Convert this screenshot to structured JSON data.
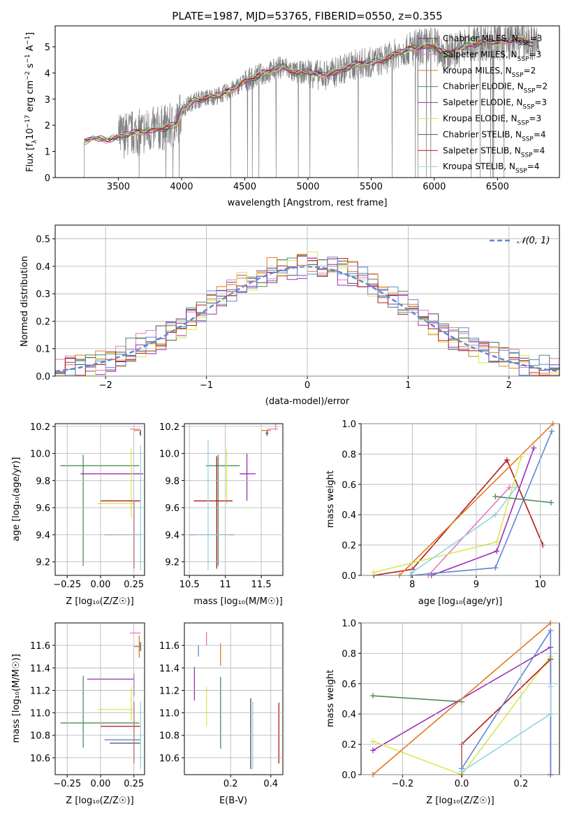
{
  "figure": {
    "title": "PLATE=1987, MJD=53765, FIBERID=0550, z=0.355"
  },
  "colors": {
    "spectrum": "#7f7f7f",
    "grid": "#b0b0b0",
    "series": [
      "#4d4d4d",
      "#e377c2",
      "#e07a1f",
      "#4f8a5a",
      "#9a2fb5",
      "#d9e84f",
      "#555555",
      "#b01818",
      "#8fd6e6",
      "#5f86d6"
    ],
    "gaussian": "#5f86d6"
  },
  "labels": {
    "spec_x": "wavelength [Angstrom, rest frame]",
    "spec_y_main": "Flux [f",
    "spec_y_sub": "λ",
    "spec_y_mid": "10",
    "spec_y_sup1": "−17",
    "spec_y_mid2": " erg cm",
    "spec_y_sup2": "−2",
    "spec_y_mid3": " s",
    "spec_y_sup3": "−1",
    "spec_y_mid4": " A",
    "spec_y_sup4": "−1",
    "spec_y_end": "]",
    "hist_x": "(data-model)/error",
    "hist_y": "Normed distribution",
    "hist_legend": "𝒩(0, 1)",
    "age_y": "age  [log₁₀(age/yr)]",
    "z_x": "Z [log₁₀(Z/Z☉)]",
    "mass_x": "mass [log₁₀(M/M☉)]",
    "mass_y": "mass [log₁₀(M/M☉)]",
    "ebv_x": "E(B-V)",
    "weight_y": "mass weight",
    "age_x": "age  [log₁₀(age/yr)]"
  },
  "chart_data": [
    {
      "type": "line",
      "title": "PLATE=1987, MJD=53765, FIBERID=0550, z=0.355",
      "xlabel": "wavelength [Angstrom, rest frame]",
      "ylabel": "Flux [f_λ 10^-17 erg cm^-2 s^-1 A^-1]",
      "xlim": [
        3000,
        6990
      ],
      "ylim": [
        0,
        5.8
      ],
      "xticks": [
        3500,
        4000,
        4500,
        5000,
        5500,
        6000,
        6500
      ],
      "yticks": [
        0,
        1,
        2,
        3,
        4,
        5
      ],
      "grid": false,
      "legend_position": "top-right",
      "observed_range": [
        3230,
        6830
      ],
      "continuum_knots": {
        "x": [
          3230,
          3300,
          3400,
          3500,
          3600,
          3700,
          3800,
          3900,
          3960,
          4000,
          4100,
          4200,
          4300,
          4400,
          4500,
          4600,
          4700,
          4800,
          4900,
          5000,
          5100,
          5200,
          5300,
          5400,
          5500,
          5600,
          5700,
          5800,
          5900,
          6000,
          6100,
          6200,
          6300,
          6400,
          6500,
          6600,
          6700,
          6780
        ],
        "y": [
          1.38,
          1.5,
          1.45,
          1.55,
          1.7,
          1.75,
          1.85,
          1.95,
          2.0,
          2.6,
          2.95,
          3.05,
          3.15,
          3.35,
          3.7,
          3.9,
          4.05,
          4.25,
          4.0,
          4.05,
          3.9,
          4.0,
          4.2,
          4.35,
          4.4,
          4.5,
          4.75,
          4.9,
          5.0,
          5.05,
          4.7,
          4.95,
          5.1,
          5.2,
          5.15,
          5.25,
          5.3,
          5.1
        ]
      },
      "series": [
        {
          "name": "Chabrier MILES, N_SSP=3",
          "label_main": "Chabrier MILES, N",
          "label_sub": "SSP",
          "label_end": "=3"
        },
        {
          "name": "Salpeter MILES, N_SSP=3",
          "label_main": "Salpeter MILES, N",
          "label_sub": "SSP",
          "label_end": "=3"
        },
        {
          "name": "Kroupa MILES, N_SSP=2",
          "label_main": "Kroupa MILES, N",
          "label_sub": "SSP",
          "label_end": "=2"
        },
        {
          "name": "Chabrier ELODIE, N_SSP=2",
          "label_main": "Chabrier ELODIE, N",
          "label_sub": "SSP",
          "label_end": "=2"
        },
        {
          "name": "Salpeter ELODIE, N_SSP=3",
          "label_main": "Salpeter ELODIE, N",
          "label_sub": "SSP",
          "label_end": "=3"
        },
        {
          "name": "Kroupa ELODIE, N_SSP=3",
          "label_main": "Kroupa ELODIE, N",
          "label_sub": "SSP",
          "label_end": "=3"
        },
        {
          "name": "Chabrier STELIB, N_SSP=4",
          "label_main": "Chabrier STELIB, N",
          "label_sub": "SSP",
          "label_end": "=4"
        },
        {
          "name": "Salpeter STELIB, N_SSP=4",
          "label_main": "Salpeter STELIB, N",
          "label_sub": "SSP",
          "label_end": "=4"
        },
        {
          "name": "Kroupa STELIB, N_SSP=4",
          "label_main": "Kroupa STELIB, N",
          "label_sub": "SSP",
          "label_end": "=4"
        }
      ]
    },
    {
      "type": "line",
      "xlabel": "(data-model)/error",
      "ylabel": "Normed distribution",
      "xlim": [
        -2.5,
        2.5
      ],
      "ylim": [
        0,
        0.55
      ],
      "xticks": [
        -2,
        -1,
        0,
        1,
        2
      ],
      "yticks": [
        0.0,
        0.1,
        0.2,
        0.3,
        0.4,
        0.5
      ],
      "grid": true,
      "legend_position": "top-right",
      "bin_width": 0.1,
      "gaussian": {
        "name": "𝒩(0, 1)",
        "mean": 0,
        "sigma": 1
      },
      "series_hist": [
        {
          "color_index": 0,
          "amp": 0.4,
          "sigma": 1.0
        },
        {
          "color_index": 1,
          "amp": 0.41,
          "sigma": 1.02
        },
        {
          "color_index": 2,
          "amp": 0.42,
          "sigma": 1.0
        },
        {
          "color_index": 3,
          "amp": 0.4,
          "sigma": 1.05
        },
        {
          "color_index": 4,
          "amp": 0.4,
          "sigma": 0.98
        },
        {
          "color_index": 5,
          "amp": 0.42,
          "sigma": 0.97
        },
        {
          "color_index": 7,
          "amp": 0.41,
          "sigma": 1.0
        },
        {
          "color_index": 9,
          "amp": 0.41,
          "sigma": 1.03
        }
      ]
    },
    {
      "type": "scatter",
      "panel": "age_vs_Z",
      "xlabel": "Z [log10(Z/Zsun)]",
      "ylabel": "age [log10(age/yr)]",
      "xlim": [
        -0.34,
        0.33
      ],
      "ylim": [
        9.1,
        10.22
      ],
      "xticks": [
        -0.25,
        0.0,
        0.25
      ],
      "xtick_labels": [
        "−0.25",
        "0.00",
        "0.25"
      ],
      "yticks": [
        9.2,
        9.4,
        9.6,
        9.8,
        10.0,
        10.2
      ],
      "grid": true,
      "points": [
        {
          "c": 3,
          "x": -0.13,
          "xerr": [
            0.17,
            0.42
          ],
          "y": 9.91,
          "yerr": [
            0.74,
            0.08
          ]
        },
        {
          "c": 4,
          "x": 0.25,
          "xerr": [
            0.4,
            0.07
          ],
          "y": 9.85,
          "yerr": [
            0.0,
            0.0
          ]
        },
        {
          "c": 5,
          "x": 0.23,
          "xerr": [
            0.25,
            0.02
          ],
          "y": 9.63,
          "yerr": [
            0.1,
            0.41
          ]
        },
        {
          "c": 7,
          "x": 0.25,
          "xerr": [
            0.25,
            0.05
          ],
          "y": 9.65,
          "yerr": [
            0.5,
            0.0
          ]
        },
        {
          "c": 8,
          "x": 0.3,
          "xerr": [
            0.0,
            0.0
          ],
          "y": 9.64,
          "yerr": [
            0.5,
            0.42
          ]
        },
        {
          "c": 9,
          "x": 0.25,
          "xerr": [
            0.22,
            0.05
          ],
          "y": 9.4,
          "yerr": [
            0.0,
            0.0
          ]
        },
        {
          "c": 8,
          "x": 0.28,
          "xerr": [
            0.18,
            0.02
          ],
          "y": 9.4,
          "yerr": [
            0.0,
            0.0
          ]
        },
        {
          "c": 1,
          "x": 0.27,
          "xerr": [
            0.05,
            0.03
          ],
          "y": 10.18,
          "yerr": [
            0.0,
            0.0
          ]
        },
        {
          "c": 2,
          "x": 0.29,
          "xerr": [
            0.04,
            0.01
          ],
          "y": 10.17,
          "yerr": [
            0.0,
            0.0
          ]
        },
        {
          "c": 0,
          "x": 0.3,
          "xerr": [
            0.01,
            0.0
          ],
          "y": 10.15,
          "yerr": [
            0.02,
            0.02
          ]
        }
      ]
    },
    {
      "type": "scatter",
      "panel": "age_vs_mass",
      "xlabel": "mass [log10(M/Msun)]",
      "xlim": [
        10.43,
        11.8
      ],
      "ylim": [
        9.1,
        10.22
      ],
      "xticks": [
        10.5,
        11.0,
        11.5
      ],
      "yticks": [
        9.2,
        9.4,
        9.6,
        9.8,
        10.0,
        10.2
      ],
      "grid": true,
      "points": [
        {
          "c": 3,
          "x": 10.9,
          "xerr": [
            0.17,
            0.3
          ],
          "y": 9.91,
          "yerr": [
            0.74,
            0.08
          ]
        },
        {
          "c": 4,
          "x": 11.3,
          "xerr": [
            0.1,
            0.12
          ],
          "y": 9.85,
          "yerr": [
            0.2,
            0.15
          ]
        },
        {
          "c": 5,
          "x": 11.02,
          "xerr": [
            0.0,
            0.0
          ],
          "y": 9.63,
          "yerr": [
            0.0,
            0.4
          ]
        },
        {
          "c": 7,
          "x": 10.88,
          "xerr": [
            0.32,
            0.22
          ],
          "y": 9.65,
          "yerr": [
            0.5,
            0.33
          ]
        },
        {
          "c": 8,
          "x": 10.76,
          "xerr": [
            0.0,
            0.0
          ],
          "y": 9.64,
          "yerr": [
            0.5,
            0.46
          ]
        },
        {
          "c": 9,
          "x": 10.75,
          "xerr": [
            0.25,
            0.38
          ],
          "y": 9.4,
          "yerr": [
            0.0,
            0.0
          ]
        },
        {
          "c": 8,
          "x": 10.8,
          "xerr": [
            0.22,
            0.26
          ],
          "y": 9.4,
          "yerr": [
            0.0,
            0.0
          ]
        },
        {
          "c": 1,
          "x": 11.7,
          "xerr": [
            0.12,
            0.03
          ],
          "y": 10.18,
          "yerr": [
            0.0,
            0.1
          ]
        },
        {
          "c": 2,
          "x": 11.6,
          "xerr": [
            0.1,
            0.03
          ],
          "y": 10.17,
          "yerr": [
            0.0,
            0.0
          ]
        },
        {
          "c": 0,
          "x": 11.58,
          "xerr": [
            0.02,
            0.02
          ],
          "y": 10.15,
          "yerr": [
            0.02,
            0.02
          ]
        }
      ]
    },
    {
      "type": "line",
      "panel": "weight_vs_age",
      "xlabel": "age [log10(age/yr)]",
      "ylabel": "mass weight",
      "xlim": [
        7.2,
        10.3
      ],
      "ylim": [
        0,
        1
      ],
      "xticks": [
        8,
        9,
        10
      ],
      "yticks": [
        0.0,
        0.2,
        0.4,
        0.6,
        0.8,
        1.0
      ],
      "grid": true,
      "series": [
        {
          "c": 7,
          "x": [
            7.4,
            8.0,
            9.48,
            10.04
          ],
          "y": [
            0.0,
            0.04,
            0.76,
            0.2
          ]
        },
        {
          "c": 2,
          "x": [
            7.8,
            10.2
          ],
          "y": [
            0.0,
            1.0
          ]
        },
        {
          "c": 1,
          "x": [
            8.25,
            9.52
          ],
          "y": [
            0.0,
            0.58
          ]
        },
        {
          "c": 4,
          "x": [
            8.3,
            9.32,
            9.9
          ],
          "y": [
            0.0,
            0.16,
            0.84
          ]
        },
        {
          "c": 5,
          "x": [
            7.4,
            9.32,
            9.7
          ],
          "y": [
            0.02,
            0.22,
            0.78
          ]
        },
        {
          "c": 9,
          "x": [
            7.98,
            9.3,
            10.18
          ],
          "y": [
            0.0,
            0.05,
            0.95
          ]
        },
        {
          "c": 3,
          "x": [
            9.3,
            10.17
          ],
          "y": [
            0.52,
            0.48
          ]
        },
        {
          "c": 8,
          "x": [
            8.0,
            9.3,
            9.62
          ],
          "y": [
            0.02,
            0.4,
            0.58
          ]
        }
      ]
    },
    {
      "type": "scatter",
      "panel": "mass_vs_Z",
      "xlabel": "Z [log10(Z/Zsun)]",
      "ylabel": "mass [log10(M/Msun)]",
      "xlim": [
        -0.34,
        0.33
      ],
      "ylim": [
        10.45,
        11.8
      ],
      "xticks": [
        -0.25,
        0.0,
        0.25
      ],
      "xtick_labels": [
        "−0.25",
        "0.00",
        "0.25"
      ],
      "yticks": [
        10.6,
        10.8,
        11.0,
        11.2,
        11.4,
        11.6
      ],
      "grid": true,
      "points": [
        {
          "c": 3,
          "x": -0.13,
          "xerr": [
            0.17,
            0.42
          ],
          "y": 10.91,
          "yerr": [
            0.22,
            0.42
          ]
        },
        {
          "c": 4,
          "x": 0.25,
          "xerr": [
            0.35,
            0.0
          ],
          "y": 11.3,
          "yerr": [
            0.0,
            0.0
          ]
        },
        {
          "c": 4,
          "x": 0.25,
          "xerr": [
            0.0,
            0.0
          ],
          "y": 11.25,
          "yerr": [
            0.1,
            0.1
          ]
        },
        {
          "c": 5,
          "x": 0.23,
          "xerr": [
            0.25,
            0.02
          ],
          "y": 11.03,
          "yerr": [
            0.1,
            0.2
          ]
        },
        {
          "c": 7,
          "x": 0.25,
          "xerr": [
            0.25,
            0.05
          ],
          "y": 10.88,
          "yerr": [
            0.33,
            0.22
          ]
        },
        {
          "c": 9,
          "x": 0.25,
          "xerr": [
            0.22,
            0.05
          ],
          "y": 10.76,
          "yerr": [
            0.0,
            0.0
          ]
        },
        {
          "c": 0,
          "x": 0.25,
          "xerr": [
            0.18,
            0.05
          ],
          "y": 10.73,
          "yerr": [
            0.0,
            0.0
          ]
        },
        {
          "c": 8,
          "x": 0.3,
          "xerr": [
            0.0,
            0.0
          ],
          "y": 10.8,
          "yerr": [
            0.3,
            0.3
          ]
        },
        {
          "c": 1,
          "x": 0.27,
          "xerr": [
            0.05,
            0.03
          ],
          "y": 11.71,
          "yerr": [
            0.0,
            0.0
          ]
        },
        {
          "c": 2,
          "x": 0.29,
          "xerr": [
            0.04,
            0.01
          ],
          "y": 11.59,
          "yerr": [
            0.1,
            0.1
          ]
        },
        {
          "c": 0,
          "x": 0.3,
          "xerr": [
            0.01,
            0.0
          ],
          "y": 11.6,
          "yerr": [
            0.05,
            0.03
          ]
        }
      ]
    },
    {
      "type": "scatter",
      "panel": "mass_vs_EBV",
      "xlabel": "E(B-V)",
      "xlim": [
        -0.03,
        0.46
      ],
      "ylim": [
        10.45,
        11.8
      ],
      "xticks": [
        0.2,
        0.4
      ],
      "yticks": [
        10.6,
        10.8,
        11.0,
        11.2,
        11.4,
        11.6
      ],
      "grid": true,
      "points": [
        {
          "c": 4,
          "x": 0.02,
          "y": 11.27,
          "yerr": [
            0.16,
            0.14
          ]
        },
        {
          "c": 9,
          "x": 0.04,
          "y": 11.55,
          "yerr": [
            0.05,
            0.05
          ]
        },
        {
          "c": 1,
          "x": 0.08,
          "y": 11.65,
          "yerr": [
            0.05,
            0.07
          ]
        },
        {
          "c": 5,
          "x": 0.08,
          "y": 11.03,
          "yerr": [
            0.15,
            0.2
          ]
        },
        {
          "c": 2,
          "x": 0.15,
          "y": 11.52,
          "yerr": [
            0.1,
            0.1
          ]
        },
        {
          "c": 3,
          "x": 0.15,
          "y": 11.0,
          "yerr": [
            0.32,
            0.32
          ]
        },
        {
          "c": 0,
          "x": 0.3,
          "y": 10.8,
          "yerr": [
            0.3,
            0.33
          ]
        },
        {
          "c": 8,
          "x": 0.31,
          "y": 10.8,
          "yerr": [
            0.3,
            0.3
          ]
        },
        {
          "c": 7,
          "x": 0.44,
          "y": 10.82,
          "yerr": [
            0.27,
            0.27
          ]
        }
      ]
    },
    {
      "type": "line",
      "panel": "weight_vs_Z",
      "xlabel": "Z [log10(Z/Zsun)]",
      "ylabel": "mass weight",
      "xlim": [
        -0.34,
        0.33
      ],
      "ylim": [
        0,
        1
      ],
      "xticks": [
        -0.2,
        0.0,
        0.2
      ],
      "xtick_labels": [
        "−0.2",
        "0.0",
        "0.2"
      ],
      "yticks": [
        0.0,
        0.2,
        0.4,
        0.6,
        0.8,
        1.0
      ],
      "grid": true,
      "series": [
        {
          "c": 3,
          "x": [
            -0.3,
            0.0
          ],
          "y": [
            0.52,
            0.48
          ]
        },
        {
          "c": 4,
          "x": [
            -0.3,
            0.3,
            0.3
          ],
          "y": [
            0.16,
            0.84,
            0.0
          ]
        },
        {
          "c": 5,
          "x": [
            -0.3,
            0.0,
            0.3
          ],
          "y": [
            0.22,
            0.0,
            0.78
          ]
        },
        {
          "c": 2,
          "x": [
            -0.3,
            0.3
          ],
          "y": [
            0.0,
            1.0
          ]
        },
        {
          "c": 7,
          "x": [
            0.0,
            0.0,
            0.3,
            0.3
          ],
          "y": [
            0.0,
            0.2,
            0.76,
            0.0
          ]
        },
        {
          "c": 9,
          "x": [
            0.0,
            0.3,
            0.3
          ],
          "y": [
            0.04,
            0.95,
            0.0
          ]
        },
        {
          "c": 8,
          "x": [
            0.0,
            0.3,
            0.3
          ],
          "y": [
            0.02,
            0.4,
            0.58
          ]
        }
      ]
    }
  ]
}
